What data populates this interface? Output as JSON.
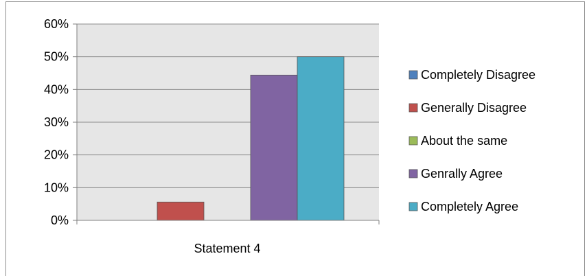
{
  "chart_data": {
    "type": "bar",
    "title": "",
    "xlabel": "",
    "ylabel": "",
    "categories": [
      "Statement 4"
    ],
    "ylim": [
      0,
      0.6
    ],
    "yticks": [
      0,
      0.1,
      0.2,
      0.3,
      0.4,
      0.5,
      0.6
    ],
    "ytick_labels": [
      "0%",
      "10%",
      "20%",
      "30%",
      "40%",
      "50%",
      "60%"
    ],
    "grid": true,
    "plot_background": "#e6e6e6",
    "legend_position": "right",
    "series": [
      {
        "name": "Completely Disagree",
        "values": [
          0.0
        ],
        "color": "#4f81bd"
      },
      {
        "name": "Generally Disagree",
        "values": [
          0.056
        ],
        "color": "#c0504d"
      },
      {
        "name": "About the same",
        "values": [
          0.0
        ],
        "color": "#9bbb59"
      },
      {
        "name": "Genrally Agree",
        "values": [
          0.444
        ],
        "color": "#8064a2"
      },
      {
        "name": "Completely Agree",
        "values": [
          0.5
        ],
        "color": "#4bacc6"
      }
    ]
  }
}
